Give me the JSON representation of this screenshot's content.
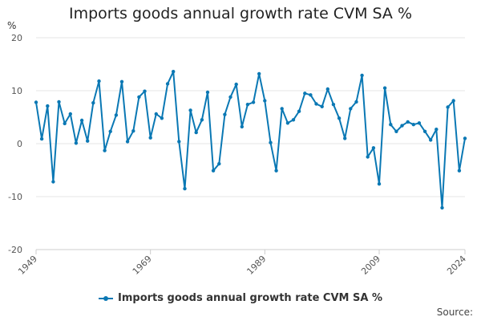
{
  "chart_data": {
    "type": "line",
    "title": "Imports goods annual growth rate CVM SA %",
    "ylabel": "%",
    "xlabel": "",
    "ylim": [
      -20,
      20
    ],
    "yticks": [
      -20,
      -10,
      0,
      10,
      20
    ],
    "xlim": [
      1949,
      2024
    ],
    "xticks": [
      1949,
      1969,
      1989,
      2009,
      2024
    ],
    "grid": true,
    "legend_position": "bottom",
    "series": [
      {
        "name": "Imports goods annual growth rate CVM SA %",
        "color": "#0a78b4",
        "x": [
          1949,
          1950,
          1951,
          1952,
          1953,
          1954,
          1955,
          1956,
          1957,
          1958,
          1959,
          1960,
          1961,
          1962,
          1963,
          1964,
          1965,
          1966,
          1967,
          1968,
          1969,
          1970,
          1971,
          1972,
          1973,
          1974,
          1975,
          1976,
          1977,
          1978,
          1979,
          1980,
          1981,
          1982,
          1983,
          1984,
          1985,
          1986,
          1987,
          1988,
          1989,
          1990,
          1991,
          1992,
          1993,
          1994,
          1995,
          1996,
          1997,
          1998,
          1999,
          2000,
          2001,
          2002,
          2003,
          2004,
          2005,
          2006,
          2007,
          2008,
          2009,
          2010,
          2011,
          2012,
          2013,
          2014,
          2015,
          2016,
          2017,
          2018,
          2019,
          2020,
          2021,
          2022,
          2023,
          2024
        ],
        "values": [
          7.8,
          0.9,
          7.1,
          -7.2,
          7.9,
          3.8,
          5.6,
          0.1,
          4.4,
          0.5,
          7.7,
          11.8,
          -1.3,
          2.3,
          5.4,
          11.7,
          0.4,
          2.4,
          8.8,
          9.9,
          1.1,
          5.6,
          4.8,
          11.3,
          13.6,
          0.4,
          -8.5,
          6.3,
          2.1,
          4.5,
          9.7,
          -5.1,
          -3.8,
          5.5,
          8.8,
          11.2,
          3.2,
          7.4,
          7.8,
          13.2,
          8.1,
          0.2,
          -5.1,
          6.6,
          3.9,
          4.5,
          6.1,
          9.5,
          9.2,
          7.5,
          7.0,
          10.3,
          7.4,
          4.8,
          1.0,
          6.6,
          7.9,
          12.9,
          -2.5,
          -0.8,
          -7.6,
          10.5,
          3.6,
          2.3,
          3.4,
          4.1,
          3.6,
          3.9,
          2.3,
          0.7,
          2.7,
          -12.1,
          6.9,
          8.1,
          -5.1,
          1.0
        ]
      }
    ]
  },
  "legend": {
    "label": "Imports goods annual growth rate CVM SA %"
  },
  "footer": {
    "source_label": "Source:"
  }
}
